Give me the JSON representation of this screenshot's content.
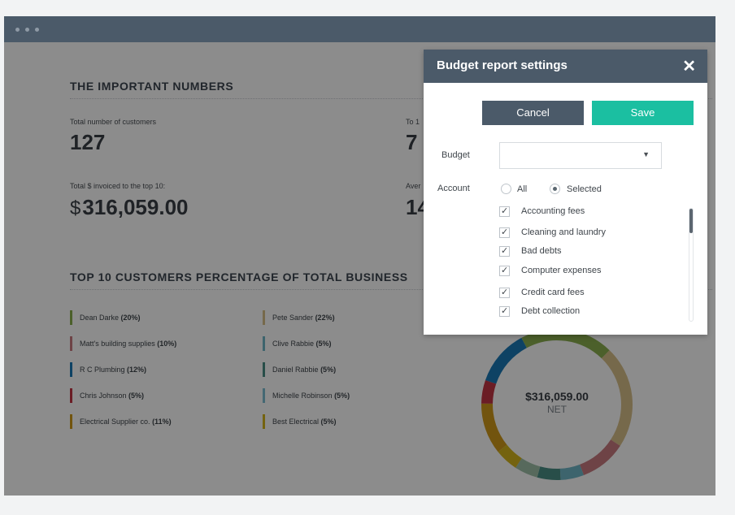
{
  "dashboard": {
    "numbers_title": "THE IMPORTANT NUMBERS",
    "stats": [
      {
        "label": "Total number of customers",
        "value": "127"
      },
      {
        "label": "To 1",
        "value": "7"
      },
      {
        "label": "Total $ invoiced to the top 10:",
        "currency": "$",
        "value": "316,059.00"
      },
      {
        "label": "Aver",
        "value": "14"
      }
    ],
    "top10_title": "TOP 10 CUSTOMERS PERCENTAGE OF TOTAL BUSINESS",
    "legend": [
      {
        "name": "Dean Darke",
        "pct": "(20%)",
        "color": "#8ab04f"
      },
      {
        "name": "Matt's building supplies",
        "pct": "(10%)",
        "color": "#c97b80"
      },
      {
        "name": "R C Plumbing",
        "pct": "(12%)",
        "color": "#1a79b7"
      },
      {
        "name": "Chris Johnson",
        "pct": "(5%)",
        "color": "#c33544"
      },
      {
        "name": "Electrical Supplier co.",
        "pct": "(11%)",
        "color": "#cf9a1b"
      },
      {
        "name": "Pete Sander",
        "pct": "(22%)",
        "color": "#d8bf89"
      },
      {
        "name": "Clive Rabbie",
        "pct": "(5%)",
        "color": "#6fb6c6"
      },
      {
        "name": "Daniel Rabbie",
        "pct": "(5%)",
        "color": "#4a8f86"
      },
      {
        "name": "Michelle Robinson",
        "pct": "(5%)",
        "color": "#7cbdd1"
      },
      {
        "name": "Best Electrical",
        "pct": "(5%)",
        "color": "#d4b51c"
      }
    ],
    "donut_amount": "$316,059.00",
    "donut_label": "NET",
    "donut_segments": [
      {
        "pct": 22,
        "color": "#d8bf89"
      },
      {
        "pct": 10,
        "color": "#c97b80"
      },
      {
        "pct": 5,
        "color": "#6fb6c6"
      },
      {
        "pct": 5,
        "color": "#4a8f86"
      },
      {
        "pct": 5,
        "color": "#9fc0a8"
      },
      {
        "pct": 5,
        "color": "#d4b51c"
      },
      {
        "pct": 11,
        "color": "#cf9a1b"
      },
      {
        "pct": 5,
        "color": "#c33544"
      },
      {
        "pct": 12,
        "color": "#1a79b7"
      },
      {
        "pct": 20,
        "color": "#8ab04f"
      }
    ]
  },
  "modal": {
    "title": "Budget report settings",
    "close_symbol": "✕",
    "cancel_label": "Cancel",
    "save_label": "Save",
    "budget_label": "Budget",
    "budget_value": "",
    "account_label": "Account",
    "radio_all": "All",
    "radio_selected": "Selected",
    "selected_option": "Selected",
    "accounts": [
      "Accounting fees",
      "Cleaning and laundry",
      "Bad debts",
      "Computer expenses",
      "Credit card fees",
      "Debt collection"
    ],
    "colors": {
      "header": "#4b5a69",
      "cancel": "#4b5a69",
      "save": "#1bbfa1"
    }
  }
}
